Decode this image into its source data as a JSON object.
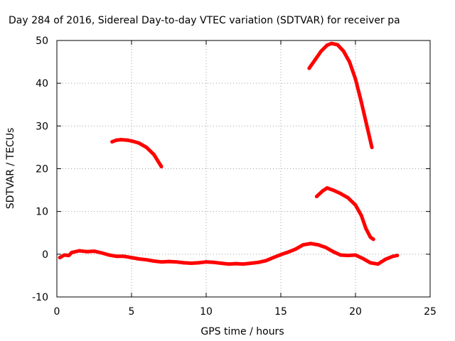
{
  "chart_data": {
    "type": "line",
    "title": "Day 284 of 2016, Sidereal Day-to-day VTEC variation (SDTVAR) for receiver pa",
    "xlabel": "GPS time / hours",
    "ylabel": "SDTVAR / TECUs",
    "xlim": [
      0,
      25
    ],
    "ylim": [
      -10,
      50
    ],
    "xticks": [
      0,
      5,
      10,
      15,
      20,
      25
    ],
    "yticks": [
      -10,
      0,
      10,
      20,
      30,
      40,
      50
    ],
    "grid": true,
    "series_color": "#ff0000",
    "series": [
      {
        "name": "trace-baseline",
        "points": [
          [
            0.2,
            -0.8
          ],
          [
            0.5,
            -0.2
          ],
          [
            0.8,
            -0.3
          ],
          [
            1.0,
            0.4
          ],
          [
            1.5,
            0.8
          ],
          [
            2.0,
            0.6
          ],
          [
            2.5,
            0.7
          ],
          [
            3.0,
            0.3
          ],
          [
            3.5,
            -0.2
          ],
          [
            4.0,
            -0.5
          ],
          [
            4.5,
            -0.5
          ],
          [
            5.0,
            -0.8
          ],
          [
            5.5,
            -1.1
          ],
          [
            6.0,
            -1.3
          ],
          [
            6.5,
            -1.6
          ],
          [
            7.0,
            -1.8
          ],
          [
            7.5,
            -1.7
          ],
          [
            8.0,
            -1.8
          ],
          [
            8.5,
            -2.0
          ],
          [
            9.0,
            -2.1
          ],
          [
            9.5,
            -2.0
          ],
          [
            10.0,
            -1.8
          ],
          [
            10.5,
            -1.9
          ],
          [
            11.0,
            -2.1
          ],
          [
            11.5,
            -2.3
          ],
          [
            12.0,
            -2.2
          ],
          [
            12.5,
            -2.3
          ],
          [
            13.0,
            -2.1
          ],
          [
            13.5,
            -1.9
          ],
          [
            14.0,
            -1.5
          ],
          [
            14.5,
            -0.8
          ],
          [
            15.0,
            -0.1
          ],
          [
            15.5,
            0.5
          ],
          [
            16.0,
            1.2
          ],
          [
            16.5,
            2.2
          ],
          [
            17.0,
            2.5
          ],
          [
            17.5,
            2.2
          ],
          [
            18.0,
            1.6
          ],
          [
            18.5,
            0.6
          ],
          [
            19.0,
            -0.2
          ],
          [
            19.5,
            -0.3
          ],
          [
            20.0,
            -0.2
          ],
          [
            20.5,
            -1.0
          ],
          [
            21.0,
            -2.0
          ],
          [
            21.5,
            -2.3
          ],
          [
            22.0,
            -1.2
          ],
          [
            22.5,
            -0.5
          ],
          [
            22.8,
            -0.3
          ]
        ]
      },
      {
        "name": "trace-arc-morning",
        "points": [
          [
            3.7,
            26.3
          ],
          [
            4.0,
            26.7
          ],
          [
            4.3,
            26.8
          ],
          [
            4.7,
            26.7
          ],
          [
            5.0,
            26.5
          ],
          [
            5.5,
            26.0
          ],
          [
            6.0,
            25.0
          ],
          [
            6.5,
            23.3
          ],
          [
            7.0,
            20.5
          ]
        ]
      },
      {
        "name": "trace-arc-peak",
        "points": [
          [
            16.9,
            43.5
          ],
          [
            17.3,
            45.5
          ],
          [
            17.7,
            47.5
          ],
          [
            18.1,
            48.9
          ],
          [
            18.4,
            49.3
          ],
          [
            18.8,
            49.0
          ],
          [
            19.2,
            47.5
          ],
          [
            19.6,
            45.0
          ],
          [
            20.0,
            41.0
          ],
          [
            20.4,
            35.5
          ],
          [
            20.8,
            29.5
          ],
          [
            21.1,
            25.0
          ]
        ]
      },
      {
        "name": "trace-arc-evening",
        "points": [
          [
            17.4,
            13.5
          ],
          [
            17.8,
            14.8
          ],
          [
            18.1,
            15.5
          ],
          [
            18.5,
            15.0
          ],
          [
            19.0,
            14.2
          ],
          [
            19.5,
            13.2
          ],
          [
            20.0,
            11.5
          ],
          [
            20.4,
            9.0
          ],
          [
            20.7,
            6.0
          ],
          [
            21.0,
            4.0
          ],
          [
            21.2,
            3.5
          ]
        ]
      }
    ]
  }
}
